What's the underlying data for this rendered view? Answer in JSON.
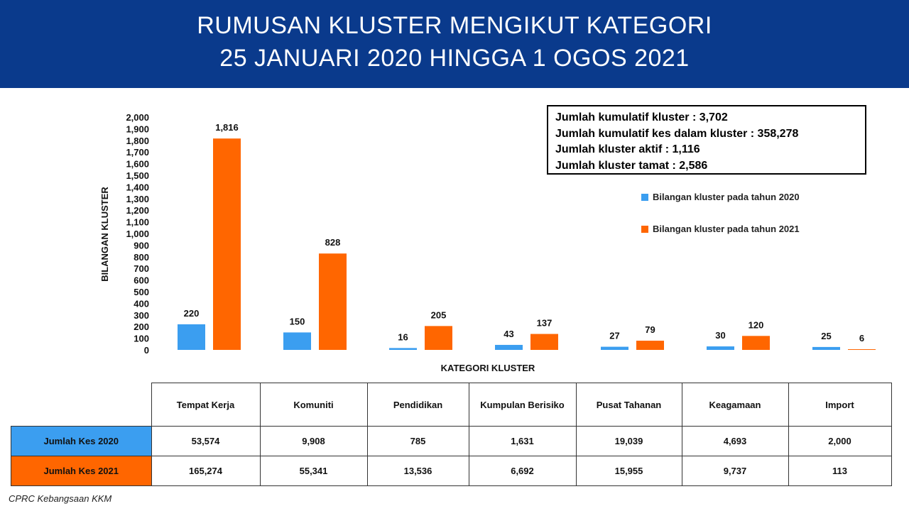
{
  "header": {
    "title_line1": "RUMUSAN KLUSTER MENGIKUT KATEGORI",
    "title_line2": "25 JANUARI 2020 HINGGA 1 OGOS 2021"
  },
  "summary": [
    "Jumlah kumulatif kluster : 3,702",
    "Jumlah kumulatif kes dalam kluster : 358,278",
    "Jumlah kluster aktif : 1,116",
    "Jumlah kluster tamat : 2,586"
  ],
  "chart_data": {
    "type": "bar",
    "categories": [
      "Tempat Kerja",
      "Komuniti",
      "Pendidikan",
      "Kumpulan Berisiko",
      "Pusat Tahanan",
      "Keagamaan",
      "Import"
    ],
    "series": [
      {
        "name": "Bilangan kluster pada tahun 2020",
        "color": "#3b9ef0",
        "values": [
          220,
          150,
          16,
          43,
          27,
          30,
          25
        ]
      },
      {
        "name": "Bilangan kluster pada tahun 2021",
        "color": "#ff6600",
        "values": [
          1816,
          828,
          205,
          137,
          79,
          120,
          6
        ]
      }
    ],
    "xlabel": "KATEGORI KLUSTER",
    "ylabel": "BILANGAN KLUSTER",
    "ylim": [
      0,
      2000
    ],
    "ytick_step": 100,
    "ytick_labels": [
      "0",
      "100",
      "200",
      "300",
      "400",
      "500",
      "600",
      "700",
      "800",
      "900",
      "1,000",
      "1,100",
      "1,200",
      "1,300",
      "1,400",
      "1,500",
      "1,600",
      "1,700",
      "1,800",
      "1,900",
      "2,000"
    ],
    "data_labels": [
      [
        "220",
        "150",
        "16",
        "43",
        "27",
        "30",
        "25"
      ],
      [
        "1,816",
        "828",
        "205",
        "137",
        "79",
        "120",
        "6"
      ]
    ],
    "grid": false,
    "legend_position": "right"
  },
  "table": {
    "columns": [
      "Tempat Kerja",
      "Komuniti",
      "Pendidikan",
      "Kumpulan Berisiko",
      "Pusat Tahanan",
      "Keagamaan",
      "Import"
    ],
    "rows": [
      {
        "label": "Jumlah Kes 2020",
        "values": [
          "53,574",
          "9,908",
          "785",
          "1,631",
          "19,039",
          "4,693",
          "2,000"
        ]
      },
      {
        "label": "Jumlah Kes 2021",
        "values": [
          "165,274",
          "55,341",
          "13,536",
          "6,692",
          "15,955",
          "9,737",
          "113"
        ]
      }
    ]
  },
  "footer": {
    "source": "CPRC Kebangsaan KKM"
  }
}
